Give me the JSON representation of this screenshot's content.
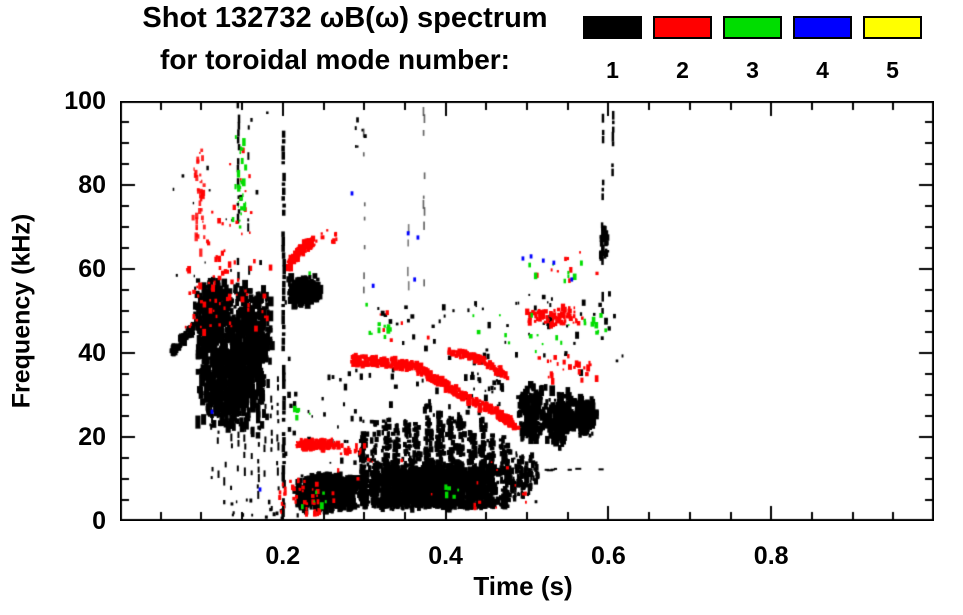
{
  "chart_data": {
    "type": "scatter",
    "title_line1": "Shot 132732 ωB(ω) spectrum",
    "title_line2": "for toroidal mode number:",
    "xlabel": "Time (s)",
    "ylabel": "Frequency (kHz)",
    "x_axis": {
      "label": "Time (s)",
      "min": 0,
      "max": 1,
      "major_ticks": [
        0.2,
        0.4,
        0.6,
        0.8
      ],
      "major_labels": [
        "0.2",
        "0.4",
        "0.6",
        "0.8"
      ],
      "minor_step": 0.05,
      "grid": false
    },
    "y_axis": {
      "label": "Frequency (kHz)",
      "min": 0,
      "max": 100,
      "major_ticks": [
        0,
        20,
        40,
        60,
        80,
        100
      ],
      "major_labels": [
        "0",
        "20",
        "40",
        "60",
        "80",
        "100"
      ],
      "minor_step": 5,
      "grid": false
    },
    "legend": {
      "position": "top-right",
      "entries": [
        {
          "label": "1",
          "color": "#000000"
        },
        {
          "label": "2",
          "color": "#ff0000"
        },
        {
          "label": "3",
          "color": "#00dd00"
        },
        {
          "label": "4",
          "color": "#0000ff"
        },
        {
          "label": "5",
          "color": "#ffff00"
        }
      ]
    },
    "features": [
      {
        "mode": 1,
        "type": "chirp",
        "pts": [
          [
            0.062,
            40
          ],
          [
            0.075,
            42.5
          ],
          [
            0.092,
            46.5
          ]
        ],
        "w": 2.5,
        "n": 80,
        "s": 3
      },
      {
        "mode": 1,
        "type": "blob",
        "t": [
          0.088,
          0.138
        ],
        "f": [
          38,
          58
        ],
        "n": 380,
        "s": 4,
        "el": 1.5
      },
      {
        "mode": 1,
        "type": "blob",
        "t": [
          0.092,
          0.185
        ],
        "f": [
          20,
          50
        ],
        "n": 650,
        "s": 4,
        "el": 2
      },
      {
        "mode": 1,
        "type": "blob",
        "t": [
          0.13,
          0.19
        ],
        "f": [
          34,
          58
        ],
        "n": 300,
        "s": 4,
        "el": 1.5
      },
      {
        "mode": 1,
        "type": "vlines",
        "ts": [
          0.113,
          0.121,
          0.129,
          0.137,
          0.145,
          0.153,
          0.162,
          0.17,
          0.178,
          0.186,
          0.194
        ],
        "f": [
          3,
          38
        ],
        "d": 0.5,
        "w": 2
      },
      {
        "mode": 1,
        "type": "vline",
        "t": 0.1455,
        "f": [
          55,
          101
        ],
        "d": 0.55,
        "w": 2.5
      },
      {
        "mode": 1,
        "type": "vline",
        "t": 0.158,
        "f": [
          58,
          96
        ],
        "d": 0.3,
        "w": 2
      },
      {
        "mode": 1,
        "type": "vline",
        "t": 0.201,
        "f": [
          2,
          93
        ],
        "d": 0.8,
        "w": 3.5
      },
      {
        "mode": 1,
        "type": "blob",
        "t": [
          0.203,
          0.248
        ],
        "f": [
          51,
          58.5
        ],
        "n": 200,
        "s": 4,
        "el": 1.2
      },
      {
        "mode": 1,
        "type": "blob",
        "t": [
          0.213,
          0.3
        ],
        "f": [
          2.5,
          11.5
        ],
        "n": 500,
        "s": 4,
        "el": 1.2
      },
      {
        "mode": 1,
        "type": "bursts",
        "t": [
          0.295,
          0.478
        ],
        "base": 3.5,
        "peak": [
          16,
          29
        ],
        "count": 14,
        "m": 110
      },
      {
        "mode": 1,
        "type": "blob",
        "t": [
          0.295,
          0.475
        ],
        "f": [
          4,
          14
        ],
        "n": 900,
        "s": 4,
        "el": 1.2
      },
      {
        "mode": 1,
        "type": "blob",
        "t": [
          0.3,
          0.47
        ],
        "f": [
          2.5,
          6
        ],
        "n": 200,
        "s": 3,
        "el": 1.2
      },
      {
        "mode": 1,
        "type": "bursts",
        "t": [
          0.22,
          0.292
        ],
        "base": 2.5,
        "peak": [
          8,
          13
        ],
        "count": 4,
        "m": 40
      },
      {
        "mode": 1,
        "type": "blob",
        "t": [
          0.467,
          0.517
        ],
        "f": [
          4,
          17
        ],
        "n": 140,
        "s": 3,
        "el": 1.2
      },
      {
        "mode": 1,
        "type": "blob",
        "t": [
          0.488,
          0.527
        ],
        "f": [
          18,
          33
        ],
        "n": 190,
        "s": 4,
        "el": 1.3
      },
      {
        "mode": 1,
        "type": "blob",
        "t": [
          0.524,
          0.557
        ],
        "f": [
          17,
          32
        ],
        "n": 170,
        "s": 4,
        "el": 1.3
      },
      {
        "mode": 1,
        "type": "blob",
        "t": [
          0.553,
          0.586
        ],
        "f": [
          20,
          30
        ],
        "n": 110,
        "s": 4,
        "el": 1.3
      },
      {
        "mode": 1,
        "type": "hline",
        "fc": 23.3,
        "t": [
          0.497,
          0.586
        ],
        "d": 0.9,
        "w": 3
      },
      {
        "mode": 1,
        "type": "hline",
        "fc": 12.3,
        "t": [
          0.493,
          0.592
        ],
        "d": 0.22,
        "w": 2
      },
      {
        "mode": 1,
        "type": "vline",
        "t": 0.3,
        "f": [
          55,
          97
        ],
        "d": 0.28,
        "w": 1.7,
        "a": 0.6
      },
      {
        "mode": 1,
        "type": "vline",
        "t": 0.354,
        "f": [
          56,
          73
        ],
        "d": 0.2,
        "w": 1.7,
        "a": 0.5
      },
      {
        "mode": 1,
        "type": "vline",
        "t": 0.3735,
        "f": [
          55,
          99
        ],
        "d": 0.28,
        "w": 1.7,
        "a": 0.6
      },
      {
        "mode": 1,
        "type": "vline",
        "t": 0.593,
        "f": [
          50,
          97
        ],
        "d": 0.45,
        "w": 2.5
      },
      {
        "mode": 1,
        "type": "vline",
        "t": 0.6055,
        "f": [
          83,
          99
        ],
        "d": 0.65,
        "w": 2.5
      },
      {
        "mode": 1,
        "type": "blob",
        "t": [
          0.589,
          0.6
        ],
        "f": [
          62,
          71
        ],
        "n": 35,
        "s": 3,
        "el": 1.5
      },
      {
        "mode": 1,
        "type": "dots",
        "t": [
          0.3,
          0.48
        ],
        "f": [
          25,
          52
        ],
        "n": 50,
        "s": 2.5
      },
      {
        "mode": 1,
        "type": "dots",
        "t": [
          0.2,
          0.3
        ],
        "f": [
          12,
          40
        ],
        "n": 36,
        "s": 2.5
      },
      {
        "mode": 1,
        "type": "dots",
        "t": [
          0.48,
          0.62
        ],
        "f": [
          35,
          55
        ],
        "n": 26,
        "s": 2.5
      },
      {
        "mode": 1,
        "type": "dots",
        "t": [
          0.51,
          0.532
        ],
        "f": [
          46,
          55
        ],
        "n": 12,
        "s": 2.5
      },
      {
        "mode": 1,
        "type": "dots",
        "t": [
          0.12,
          0.22
        ],
        "f": [
          0.5,
          5
        ],
        "n": 20,
        "s": 2
      },
      {
        "mode": 1,
        "type": "dots",
        "t": [
          0.06,
          0.2
        ],
        "f": [
          58,
          100
        ],
        "n": 18,
        "s": 2
      },
      {
        "mode": 1,
        "type": "dots",
        "t": [
          0.288,
          0.302
        ],
        "f": [
          88,
          96
        ],
        "n": 6,
        "s": 2
      },
      {
        "mode": 1,
        "type": "dots",
        "t": [
          0.42,
          0.47
        ],
        "f": [
          25,
          40
        ],
        "n": 24,
        "s": 3
      },
      {
        "mode": 2,
        "type": "blob",
        "t": [
          0.089,
          0.106
        ],
        "f": [
          62,
          92
        ],
        "n": 42,
        "s": 2.5,
        "el": 1.8,
        "a": 0.85
      },
      {
        "mode": 2,
        "type": "dots",
        "t": [
          0.105,
          0.13
        ],
        "f": [
          50,
          76
        ],
        "n": 22,
        "s": 2.5
      },
      {
        "mode": 2,
        "type": "dots",
        "t": [
          0.08,
          0.185
        ],
        "f": [
          44,
          62
        ],
        "n": 45,
        "s": 2.5
      },
      {
        "mode": 2,
        "type": "dots",
        "t": [
          0.132,
          0.165
        ],
        "f": [
          60,
          92
        ],
        "n": 14,
        "s": 2.2
      },
      {
        "mode": 2,
        "type": "chirp",
        "pts": [
          [
            0.208,
            61
          ],
          [
            0.222,
            64.5
          ],
          [
            0.238,
            66.8
          ]
        ],
        "w": 2.2,
        "n": 120,
        "s": 3
      },
      {
        "mode": 2,
        "type": "dots",
        "t": [
          0.24,
          0.268
        ],
        "f": [
          66.5,
          69.5
        ],
        "n": 9,
        "s": 2.5
      },
      {
        "mode": 2,
        "type": "blob",
        "t": [
          0.212,
          0.272
        ],
        "f": [
          16.8,
          19.6
        ],
        "n": 160,
        "s": 3,
        "el": 1
      },
      {
        "mode": 2,
        "type": "dots",
        "t": [
          0.27,
          0.302
        ],
        "f": [
          16,
          18.5
        ],
        "n": 18,
        "s": 2.5
      },
      {
        "mode": 2,
        "type": "dots",
        "t": [
          0.19,
          0.247
        ],
        "f": [
          1.5,
          10
        ],
        "n": 40,
        "s": 2.5
      },
      {
        "mode": 2,
        "type": "chirp",
        "pts": [
          [
            0.285,
            38.3
          ],
          [
            0.32,
            38
          ],
          [
            0.36,
            36.9
          ],
          [
            0.39,
            33.5
          ],
          [
            0.424,
            29.5
          ],
          [
            0.46,
            26
          ],
          [
            0.488,
            22.3
          ]
        ],
        "w": 2.1,
        "n": 420,
        "s": 3
      },
      {
        "mode": 2,
        "type": "chirp",
        "pts": [
          [
            0.402,
            40.2
          ],
          [
            0.43,
            39.3
          ],
          [
            0.45,
            38
          ],
          [
            0.465,
            35.8
          ],
          [
            0.475,
            34.6
          ]
        ],
        "w": 1.7,
        "n": 100,
        "s": 3
      },
      {
        "mode": 2,
        "type": "blob",
        "t": [
          0.49,
          0.572
        ],
        "f": [
          46,
          51.5
        ],
        "n": 85,
        "s": 3,
        "el": 1
      },
      {
        "mode": 2,
        "type": "dots",
        "t": [
          0.515,
          0.59
        ],
        "f": [
          33,
          40
        ],
        "n": 26,
        "s": 2.5
      },
      {
        "mode": 2,
        "type": "dots",
        "t": [
          0.26,
          0.5
        ],
        "f": [
          3,
          16
        ],
        "n": 20,
        "s": 2.2
      },
      {
        "mode": 2,
        "type": "dots",
        "t": [
          0.5,
          0.59
        ],
        "f": [
          57,
          64
        ],
        "n": 9,
        "s": 2.2
      },
      {
        "mode": 2,
        "type": "dots",
        "t": [
          0.3,
          0.38
        ],
        "f": [
          42,
          50
        ],
        "n": 6,
        "s": 2.2
      },
      {
        "mode": 3,
        "type": "blob",
        "t": [
          0.138,
          0.156
        ],
        "f": [
          63,
          94
        ],
        "n": 26,
        "s": 2.5,
        "el": 1.8
      },
      {
        "mode": 3,
        "type": "dots",
        "t": [
          0.3,
          0.335
        ],
        "f": [
          43,
          47
        ],
        "n": 9,
        "s": 2.5
      },
      {
        "mode": 3,
        "type": "dots",
        "t": [
          0.4,
          0.416
        ],
        "f": [
          4,
          9
        ],
        "n": 6,
        "s": 2.5
      },
      {
        "mode": 3,
        "type": "dots",
        "t": [
          0.42,
          0.555
        ],
        "f": [
          40,
          50
        ],
        "n": 13,
        "s": 2.5
      },
      {
        "mode": 3,
        "type": "dots",
        "t": [
          0.5,
          0.575
        ],
        "f": [
          57,
          63
        ],
        "n": 8,
        "s": 2.5
      },
      {
        "mode": 3,
        "type": "dots",
        "t": [
          0.565,
          0.605
        ],
        "f": [
          44,
          49
        ],
        "n": 9,
        "s": 2.5
      },
      {
        "mode": 3,
        "type": "dots",
        "t": [
          0.21,
          0.235
        ],
        "f": [
          23,
          28
        ],
        "n": 5,
        "s": 2.5
      },
      {
        "mode": 3,
        "type": "dots",
        "t": [
          0.22,
          0.265
        ],
        "f": [
          2,
          7
        ],
        "n": 6,
        "s": 2.5
      },
      {
        "mode": 3,
        "type": "marks",
        "pts": [
          [
            0.233,
            59
          ],
          [
            0.303,
            51.5
          ]
        ],
        "s": 2.5
      },
      {
        "mode": 4,
        "type": "marks",
        "pts": [
          [
            0.113,
            26
          ],
          [
            0.172,
            7.5
          ],
          [
            0.285,
            78
          ],
          [
            0.311,
            56
          ],
          [
            0.354,
            68.5
          ],
          [
            0.362,
            57.5
          ],
          [
            0.366,
            67.5
          ],
          [
            0.495,
            62.5
          ],
          [
            0.505,
            63
          ],
          [
            0.52,
            62
          ],
          [
            0.533,
            61.5
          ],
          [
            0.555,
            57.5
          ]
        ],
        "s": 2.8
      }
    ]
  }
}
